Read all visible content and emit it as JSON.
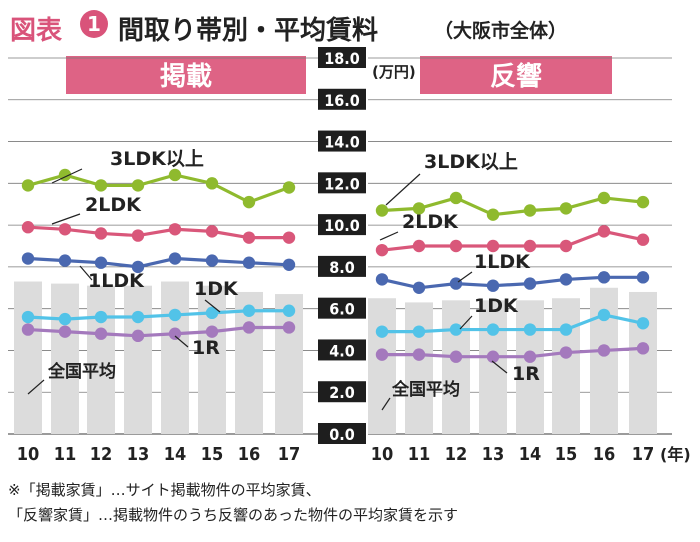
{
  "header": {
    "figure_label": "図表",
    "figure_number": "1",
    "title": "間取り帯別・平均賃料",
    "subtitle": "（大阪市全体）"
  },
  "chart_data": {
    "type": "bar+line",
    "unit_label": "(万円)",
    "year_suffix": "(年)",
    "ylim": [
      0,
      18
    ],
    "y_ticks": [
      "0.0",
      "2.0",
      "4.0",
      "6.0",
      "8.0",
      "10.0",
      "12.0",
      "14.0",
      "16.0",
      "18.0"
    ],
    "grid": true,
    "panels": [
      {
        "title": "掲載",
        "categories": [
          "10",
          "11",
          "12",
          "13",
          "14",
          "15",
          "16",
          "17"
        ],
        "bars": {
          "name": "全国平均",
          "values": [
            7.3,
            7.2,
            7.1,
            7.1,
            7.3,
            7.1,
            6.8,
            6.7
          ]
        },
        "series": [
          {
            "name": "3LDK以上",
            "color": "#8fba2e",
            "values": [
              11.9,
              12.4,
              11.9,
              11.9,
              12.4,
              12.0,
              11.1,
              11.8
            ]
          },
          {
            "name": "2LDK",
            "color": "#d9577a",
            "values": [
              9.9,
              9.8,
              9.6,
              9.5,
              9.8,
              9.7,
              9.4,
              9.4
            ]
          },
          {
            "name": "1LDK",
            "color": "#4a68b0",
            "values": [
              8.4,
              8.3,
              8.2,
              8.0,
              8.4,
              8.3,
              8.2,
              8.1
            ]
          },
          {
            "name": "1DK",
            "color": "#52c3e8",
            "values": [
              5.6,
              5.5,
              5.6,
              5.6,
              5.7,
              5.8,
              5.9,
              5.9
            ]
          },
          {
            "name": "1R",
            "color": "#a479bd",
            "values": [
              5.0,
              4.9,
              4.8,
              4.7,
              4.8,
              4.9,
              5.1,
              5.1
            ]
          }
        ]
      },
      {
        "title": "反響",
        "categories": [
          "10",
          "11",
          "12",
          "13",
          "14",
          "15",
          "16",
          "17"
        ],
        "bars": {
          "name": "全国平均",
          "values": [
            6.5,
            6.3,
            6.4,
            6.4,
            6.4,
            6.5,
            7.0,
            6.8
          ]
        },
        "series": [
          {
            "name": "3LDK以上",
            "color": "#8fba2e",
            "values": [
              10.7,
              10.8,
              11.3,
              10.5,
              10.7,
              10.8,
              11.3,
              11.1
            ]
          },
          {
            "name": "2LDK",
            "color": "#d9577a",
            "values": [
              8.8,
              9.0,
              9.0,
              9.0,
              9.0,
              9.0,
              9.7,
              9.3
            ]
          },
          {
            "name": "1LDK",
            "color": "#4a68b0",
            "values": [
              7.4,
              7.0,
              7.2,
              7.1,
              7.2,
              7.4,
              7.5,
              7.5
            ]
          },
          {
            "name": "1DK",
            "color": "#52c3e8",
            "values": [
              4.9,
              4.9,
              5.0,
              5.0,
              5.0,
              5.0,
              5.7,
              5.3
            ]
          },
          {
            "name": "1R",
            "color": "#a479bd",
            "values": [
              3.8,
              3.8,
              3.7,
              3.7,
              3.7,
              3.9,
              4.0,
              4.1
            ]
          }
        ]
      }
    ]
  },
  "notes": [
    "※「掲載家賃」…サイト掲載物件の平均家賃、",
    "「反響家賃」…掲載物件のうち反響のあった物件の平均家賃を示す"
  ]
}
